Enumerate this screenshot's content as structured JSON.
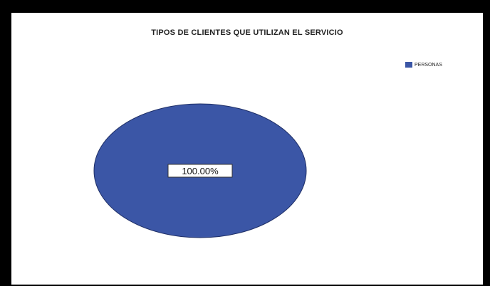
{
  "chart_data": {
    "type": "pie",
    "title": "TIPOS DE CLIENTES QUE UTILIZAN EL SERVICIO",
    "categories": [
      "PERSONAS"
    ],
    "values": [
      100
    ],
    "data_labels": [
      "100.00%"
    ],
    "colors": [
      "#3b56a6"
    ],
    "legend_position": "top-right"
  }
}
